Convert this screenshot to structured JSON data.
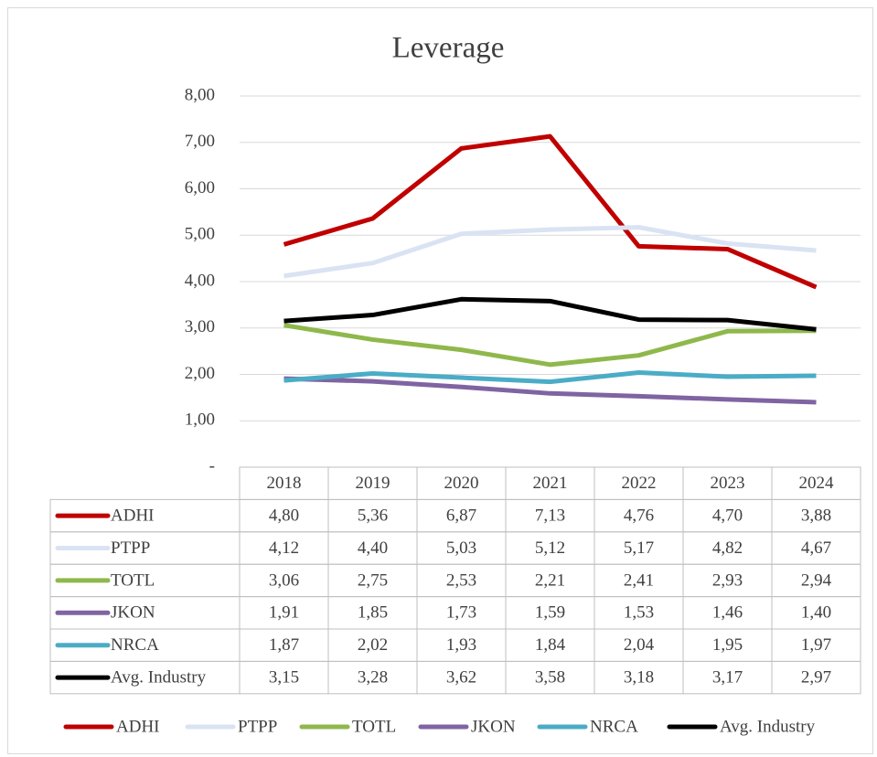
{
  "chart_data": {
    "type": "line",
    "title": "Leverage",
    "categories": [
      "2018",
      "2019",
      "2020",
      "2021",
      "2022",
      "2023",
      "2024"
    ],
    "ylim": [
      0,
      8
    ],
    "yticks": [
      {
        "value": 0,
        "label": "-"
      },
      {
        "value": 1,
        "label": "1,00"
      },
      {
        "value": 2,
        "label": "2,00"
      },
      {
        "value": 3,
        "label": "3,00"
      },
      {
        "value": 4,
        "label": "4,00"
      },
      {
        "value": 5,
        "label": "5,00"
      },
      {
        "value": 6,
        "label": "6,00"
      },
      {
        "value": 7,
        "label": "7,00"
      },
      {
        "value": 8,
        "label": "8,00"
      }
    ],
    "grid": true,
    "legend": "bottom",
    "series": [
      {
        "name": "ADHI",
        "color": "#c00000",
        "values": [
          4.8,
          5.36,
          6.87,
          7.13,
          4.76,
          4.7,
          3.88
        ],
        "value_labels": [
          "4,80",
          "5,36",
          "6,87",
          "7,13",
          "4,76",
          "4,70",
          "3,88"
        ]
      },
      {
        "name": "PTPP",
        "color": "#dae3f3",
        "values": [
          4.12,
          4.4,
          5.03,
          5.12,
          5.17,
          4.82,
          4.67
        ],
        "value_labels": [
          "4,12",
          "4,40",
          "5,03",
          "5,12",
          "5,17",
          "4,82",
          "4,67"
        ]
      },
      {
        "name": "TOTL",
        "color": "#8fb84c",
        "values": [
          3.06,
          2.75,
          2.53,
          2.21,
          2.41,
          2.93,
          2.94
        ],
        "value_labels": [
          "3,06",
          "2,75",
          "2,53",
          "2,21",
          "2,41",
          "2,93",
          "2,94"
        ]
      },
      {
        "name": "JKON",
        "color": "#8064a2",
        "values": [
          1.91,
          1.85,
          1.73,
          1.59,
          1.53,
          1.46,
          1.4
        ],
        "value_labels": [
          "1,91",
          "1,85",
          "1,73",
          "1,59",
          "1,53",
          "1,46",
          "1,40"
        ]
      },
      {
        "name": "NRCA",
        "color": "#4bacc6",
        "values": [
          1.87,
          2.02,
          1.93,
          1.84,
          2.04,
          1.95,
          1.97
        ],
        "value_labels": [
          "1,87",
          "2,02",
          "1,93",
          "1,84",
          "2,04",
          "1,95",
          "1,97"
        ]
      },
      {
        "name": "Avg. Industry",
        "color": "#000000",
        "values": [
          3.15,
          3.28,
          3.62,
          3.58,
          3.18,
          3.17,
          2.97
        ],
        "value_labels": [
          "3,15",
          "3,28",
          "3,62",
          "3,58",
          "3,18",
          "3,17",
          "2,97"
        ]
      }
    ]
  }
}
